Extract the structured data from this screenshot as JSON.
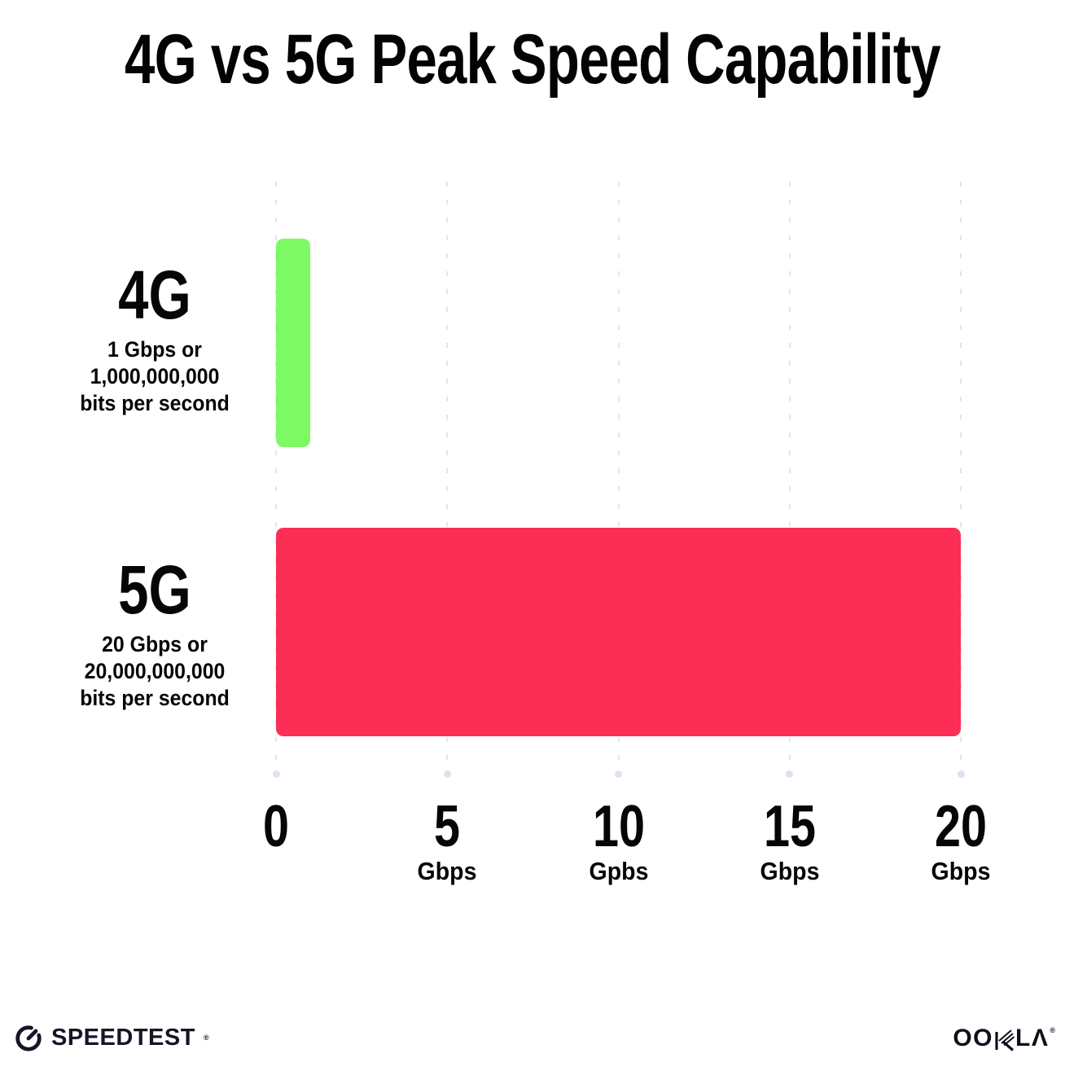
{
  "title": "4G vs 5G Peak Speed Capability",
  "chart_data": {
    "type": "bar",
    "orientation": "horizontal",
    "title": "4G vs 5G Peak Speed Capability",
    "xlabel": "Gbps",
    "ylabel": "",
    "xlim": [
      0,
      20
    ],
    "grid": "vertical-dotted",
    "legend": "none",
    "categories": [
      "4G",
      "5G"
    ],
    "series": [
      {
        "name": "4G",
        "value": 1,
        "color": "#7DF964",
        "description_lines": [
          "1 Gbps or",
          "1,000,000,000",
          "bits per second"
        ]
      },
      {
        "name": "5G",
        "value": 20,
        "color": "#FD2E56",
        "description_lines": [
          "20 Gbps or",
          "20,000,000,000",
          "bits per second"
        ]
      }
    ],
    "xticks": [
      {
        "value": 0,
        "label": "0",
        "unit": ""
      },
      {
        "value": 5,
        "label": "5",
        "unit": "Gbps"
      },
      {
        "value": 10,
        "label": "10",
        "unit": "Gpbs"
      },
      {
        "value": 15,
        "label": "15",
        "unit": "Gbps"
      },
      {
        "value": 20,
        "label": "20",
        "unit": "Gbps"
      }
    ]
  },
  "footer": {
    "speedtest_label": "SPEEDTEST",
    "speedtest_trademark": "®",
    "ookla_label_left": "OO",
    "ookla_label_right": "LΛ",
    "ookla_trademark": "®",
    "logo_color": "#141526"
  },
  "colors": {
    "background": "#FFFFFF",
    "bar_4g": "#7DF964",
    "bar_5g": "#FD2E56",
    "gridline": "#E3E3F0",
    "grid_dot": "#DDE1F0",
    "text": "#060606"
  }
}
